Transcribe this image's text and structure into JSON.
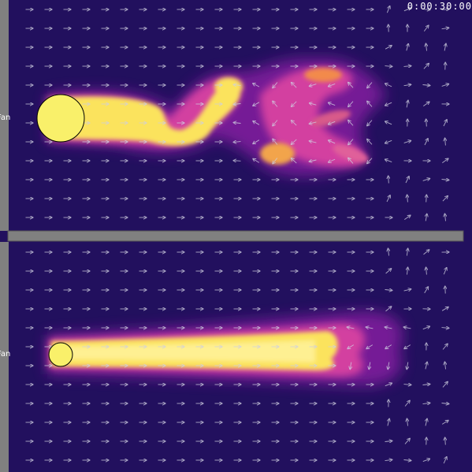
{
  "simulation": {
    "timer": "0:00:30:00",
    "panels": [
      {
        "id": "top",
        "fan_label": "Fan",
        "fan_size": "large"
      },
      {
        "id": "bottom",
        "fan_label": "Fan",
        "fan_size": "small"
      }
    ]
  },
  "colors": {
    "background": "#22105e",
    "wall": "#808080",
    "fan_fill": "#f9f06a",
    "arrow": "#cfcfe0",
    "plume_palette": [
      "#22105e",
      "#7a1b9a",
      "#d33fa0",
      "#f28a4c",
      "#fbe35d",
      "#fff6a0"
    ]
  },
  "icons": {
    "fan": "circle",
    "flow_vector": "arrow-icon"
  }
}
